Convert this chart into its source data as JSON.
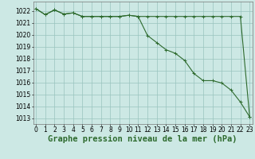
{
  "title": "Graphe pression niveau de la mer (hPa)",
  "bg_color": "#cce8e4",
  "grid_color": "#99c4be",
  "line_color": "#2d6a2d",
  "x_ticks": [
    0,
    1,
    2,
    3,
    4,
    5,
    6,
    7,
    8,
    9,
    10,
    11,
    12,
    13,
    14,
    15,
    16,
    17,
    18,
    19,
    20,
    21,
    22,
    23
  ],
  "y_ticks": [
    1013,
    1014,
    1015,
    1016,
    1017,
    1018,
    1019,
    1020,
    1021,
    1022
  ],
  "ylim": [
    1012.5,
    1022.8
  ],
  "xlim": [
    -0.3,
    23.3
  ],
  "series1": [
    1022.2,
    1021.7,
    1022.1,
    1021.75,
    1021.85,
    1021.55,
    1021.55,
    1021.55,
    1021.55,
    1021.55,
    1021.65,
    1021.55,
    1021.55,
    1021.55,
    1021.55,
    1021.55,
    1021.55,
    1021.55,
    1021.55,
    1021.55,
    1021.55,
    1021.55,
    1021.55,
    1013.1
  ],
  "series2": [
    1022.2,
    1021.7,
    1022.1,
    1021.75,
    1021.85,
    1021.55,
    1021.55,
    1021.55,
    1021.55,
    1021.55,
    1021.65,
    1021.55,
    1019.95,
    1019.35,
    1018.75,
    1018.45,
    1017.85,
    1016.75,
    1016.15,
    1016.15,
    1015.95,
    1015.35,
    1014.35,
    1013.1
  ],
  "title_fontsize": 7.5,
  "tick_fontsize": 5.5
}
